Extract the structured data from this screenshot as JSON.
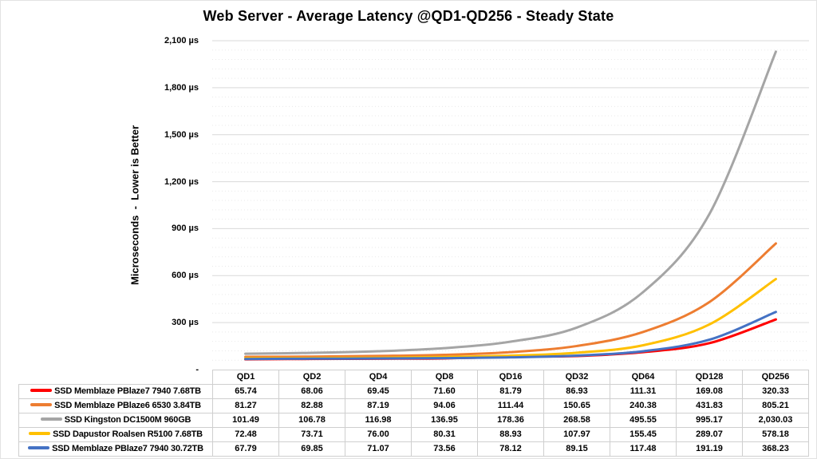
{
  "chart_data": {
    "type": "line",
    "title": "Web Server - Average Latency @QD1-QD256 - Steady State",
    "ylabel": "Microseconds  -  Lower is Better",
    "categories": [
      "QD1",
      "QD2",
      "QD4",
      "QD8",
      "QD16",
      "QD32",
      "QD64",
      "QD128",
      "QD256"
    ],
    "series": [
      {
        "name": "SSD Memblaze PBlaze7 7940 7.68TB",
        "color": "#ff0000",
        "values": [
          65.74,
          68.06,
          69.45,
          71.6,
          81.79,
          86.93,
          111.31,
          169.08,
          320.33
        ]
      },
      {
        "name": "SSD Memblaze PBlaze6 6530 3.84TB",
        "color": "#ed7d31",
        "values": [
          81.27,
          82.88,
          87.19,
          94.06,
          111.44,
          150.65,
          240.38,
          431.83,
          805.21
        ]
      },
      {
        "name": "SSD Kingston DC1500M 960GB",
        "color": "#a5a5a5",
        "values": [
          101.49,
          106.78,
          116.98,
          136.95,
          178.36,
          268.58,
          495.55,
          995.17,
          2030.03
        ]
      },
      {
        "name": "SSD Dapustor Roalsen R5100 7.68TB",
        "color": "#ffc000",
        "values": [
          72.48,
          73.71,
          76.0,
          80.31,
          88.93,
          107.97,
          155.45,
          289.07,
          578.18
        ]
      },
      {
        "name": "SSD Memblaze PBlaze7 7940 30.72TB",
        "color": "#4472c4",
        "values": [
          67.79,
          69.85,
          71.07,
          73.56,
          78.12,
          89.15,
          117.48,
          191.19,
          368.23
        ]
      }
    ],
    "y_axis": {
      "min": 0,
      "max": 2100,
      "major_unit": 300,
      "minor_unit": 60,
      "ticks": [
        {
          "value": 2100,
          "label": "2,100 µs"
        },
        {
          "value": 1800,
          "label": "1,800 µs"
        },
        {
          "value": 1500,
          "label": "1,500 µs"
        },
        {
          "value": 1200,
          "label": "1,200 µs"
        },
        {
          "value": 900,
          "label": "900 µs"
        },
        {
          "value": 600,
          "label": "600 µs"
        },
        {
          "value": 300,
          "label": "300 µs"
        },
        {
          "value": 0,
          "label": "-"
        }
      ]
    },
    "grid": {
      "major_color": "#d9d9d9",
      "minor_color": "#e9e9e9",
      "minor_style": "dotted",
      "vertical": false
    },
    "legend_position": "table-left",
    "line_width": 3,
    "smoothed": true
  }
}
